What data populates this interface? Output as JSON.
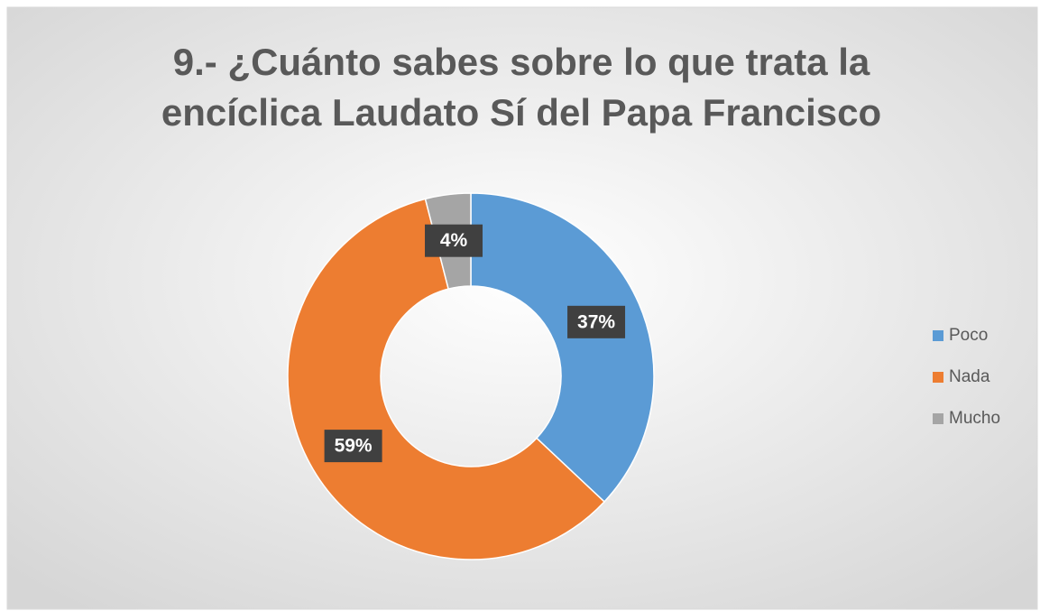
{
  "chart_data": {
    "type": "donut",
    "title": [
      "9.- ¿Cuánto sabes sobre lo que trata la",
      "encíclica Laudato Sí del Papa Francisco"
    ],
    "categories": [
      "Poco",
      "Nada",
      "Mucho"
    ],
    "values": [
      37,
      59,
      4
    ],
    "value_labels": [
      "37%",
      "59%",
      "4%"
    ],
    "colors": [
      "#5b9bd5",
      "#ed7d31",
      "#a5a5a5"
    ],
    "legend": "right"
  }
}
